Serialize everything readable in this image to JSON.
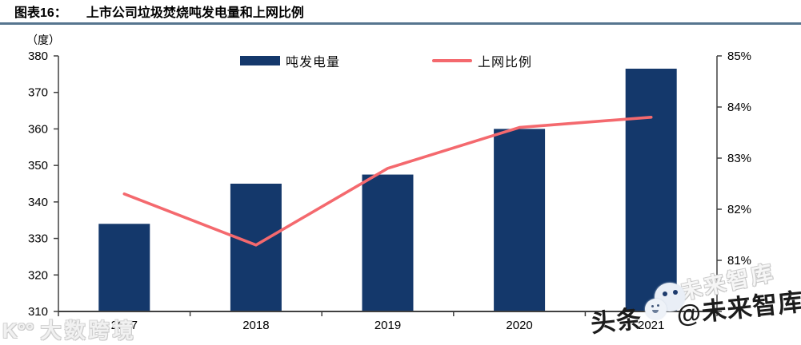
{
  "header": {
    "label": "图表16：",
    "title": "上市公司垃圾焚烧吨发电量和上网比例"
  },
  "chart_data": {
    "type": "bar",
    "title": "上市公司垃圾焚烧吨发电量和上网比例",
    "categories": [
      "2017",
      "2018",
      "2019",
      "2020",
      "2021"
    ],
    "series": [
      {
        "name": "吨发电量",
        "type": "bar",
        "axis": "left",
        "color": "#14386B",
        "values": [
          334,
          345,
          347.5,
          360,
          376.5
        ]
      },
      {
        "name": "上网比例",
        "type": "line",
        "axis": "right",
        "color": "#F4696E",
        "values": [
          82.3,
          81.3,
          82.8,
          83.6,
          83.8
        ]
      }
    ],
    "left_axis": {
      "unit": "（度）",
      "min": 310,
      "max": 380,
      "ticks": [
        {
          "v": 310,
          "label": "310"
        },
        {
          "v": 320,
          "label": "320"
        },
        {
          "v": 330,
          "label": "330"
        },
        {
          "v": 340,
          "label": "340"
        },
        {
          "v": 350,
          "label": "350"
        },
        {
          "v": 360,
          "label": "360"
        },
        {
          "v": 370,
          "label": "370"
        },
        {
          "v": 380,
          "label": "380"
        }
      ]
    },
    "right_axis": {
      "min": 80,
      "max": 85,
      "ticks": [
        {
          "v": 80,
          "label": ""
        },
        {
          "v": 81,
          "label": "81%"
        },
        {
          "v": 82,
          "label": "82%"
        },
        {
          "v": 83,
          "label": "83%"
        },
        {
          "v": 84,
          "label": "84%"
        },
        {
          "v": 85,
          "label": "85%"
        }
      ]
    },
    "legend_position": "top",
    "grid": false
  },
  "colors": {
    "bar": "#14386B",
    "line": "#F4696E",
    "axis": "#404040",
    "title_rule": "#56758f"
  },
  "watermarks": {
    "bottom_left": {
      "logo": "K°°",
      "text": "大数跨境"
    },
    "right_gray": "未来智库",
    "right_dark": {
      "prefix": "头条",
      "suffix": "@未来智库"
    }
  }
}
